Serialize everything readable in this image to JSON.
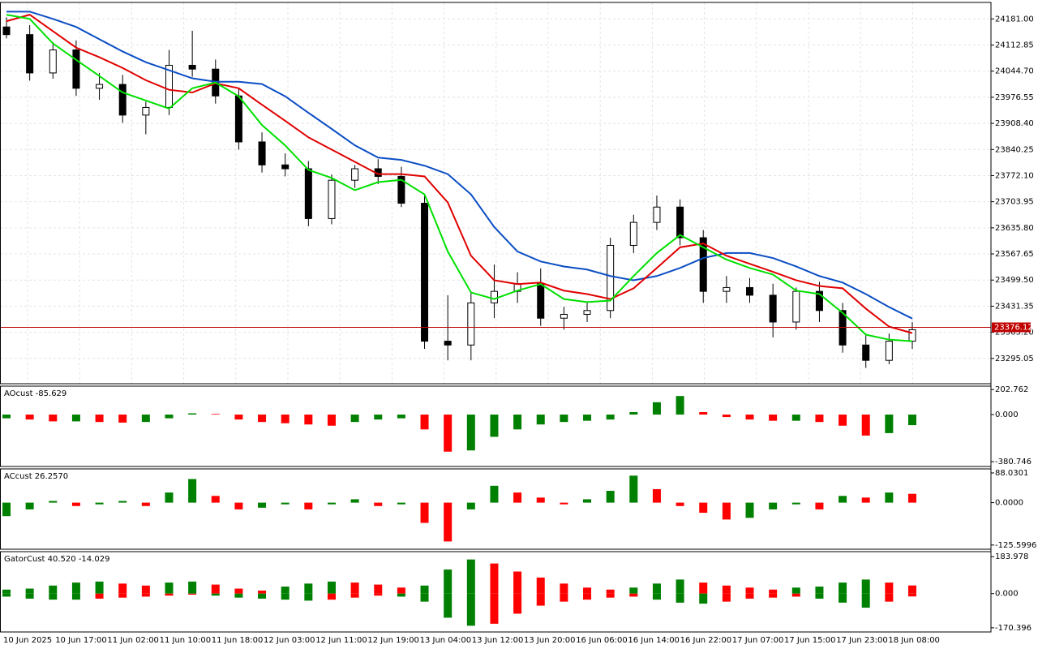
{
  "chart_data": [
    {
      "type": "candlestick",
      "grid": true,
      "ylim": [
        23229,
        24224
      ],
      "yticks": [
        {
          "value": 24181,
          "label": "24181.00"
        },
        24112.85,
        {
          "value": 24044.7,
          "label": "24044.70"
        },
        23976.55,
        {
          "value": 23908.4,
          "label": "23908.40"
        },
        23840.25,
        {
          "value": 23772.1,
          "label": "23772.10"
        },
        23703.95,
        {
          "value": 23635.8,
          "label": "23635.80"
        },
        23567.65,
        {
          "value": 23499.5,
          "label": "23499.50"
        },
        23431.35,
        {
          "value": 23363.2,
          "label": "23363.20"
        },
        23295.05
      ],
      "time_labels": [
        "10 Jun 2025",
        "10 Jun 17:00",
        "11 Jun 02:00",
        "11 Jun 10:00",
        "11 Jun 18:00",
        "12 Jun 03:00",
        "12 Jun 11:00",
        "12 Jun 19:00",
        "13 Jun 04:00",
        "13 Jun 12:00",
        "13 Jun 20:00",
        "16 Jun 06:00",
        "16 Jun 14:00",
        "16 Jun 22:00",
        "17 Jun 07:00",
        "17 Jun 15:00",
        "17 Jun 23:00",
        "18 Jun 08:00"
      ],
      "open": [
        24160,
        24140,
        24040,
        24100,
        24000,
        24010,
        23930,
        23950,
        24060,
        24050,
        23980,
        23860,
        23800,
        23790,
        23660,
        23760,
        23790,
        23770,
        23700,
        23340,
        23330,
        23440,
        23470,
        23490,
        23400,
        23410,
        23420,
        23590,
        23650,
        23690,
        23610,
        23470,
        23480,
        23460,
        23390,
        23470,
        23420,
        23330,
        23290,
        23340
      ],
      "high": [
        24185,
        24165,
        24120,
        24125,
        24040,
        24035,
        23965,
        24100,
        24150,
        24075,
        24000,
        23885,
        23830,
        23810,
        23775,
        23800,
        23815,
        23795,
        23720,
        23460,
        23470,
        23540,
        23520,
        23530,
        23430,
        23440,
        23610,
        23670,
        23720,
        23710,
        23630,
        23510,
        23505,
        23490,
        23480,
        23495,
        23440,
        23355,
        23360,
        23390
      ],
      "low": [
        24130,
        24020,
        24025,
        23980,
        23970,
        23910,
        23880,
        23930,
        24030,
        23960,
        23840,
        23780,
        23770,
        23640,
        23645,
        23740,
        23750,
        23690,
        23320,
        23290,
        23290,
        23400,
        23440,
        23380,
        23370,
        23390,
        23400,
        23570,
        23630,
        23590,
        23440,
        23440,
        23440,
        23350,
        23370,
        23390,
        23310,
        23270,
        23280,
        23320
      ],
      "close": [
        24140,
        24040,
        24100,
        24000,
        24010,
        23930,
        23950,
        24060,
        24050,
        23980,
        23860,
        23800,
        23790,
        23660,
        23760,
        23790,
        23770,
        23700,
        23340,
        23330,
        23440,
        23470,
        23490,
        23400,
        23410,
        23420,
        23590,
        23650,
        23690,
        23610,
        23470,
        23480,
        23460,
        23390,
        23470,
        23420,
        23330,
        23290,
        23340,
        23370
      ],
      "lines": [
        {
          "color": "#0b4ec4",
          "values": [
            24200,
            24200,
            24181,
            24160,
            24128,
            24096,
            24068,
            24047,
            24026,
            24017,
            24017,
            24011,
            23979,
            23936,
            23894,
            23851,
            23819,
            23813,
            23798,
            23776,
            23723,
            23638,
            23574,
            23548,
            23535,
            23527,
            23510,
            23499,
            23510,
            23531,
            23557,
            23570,
            23570,
            23557,
            23535,
            23510,
            23493,
            23463,
            23429,
            23399
          ]
        },
        {
          "color": "#e00000",
          "values": [
            24175,
            24192,
            24149,
            24106,
            24081,
            24053,
            24021,
            23996,
            23989,
            24013,
            24000,
            23957,
            23915,
            23872,
            23840,
            23808,
            23776,
            23776,
            23770,
            23702,
            23563,
            23499,
            23489,
            23493,
            23472,
            23463,
            23450,
            23478,
            23531,
            23585,
            23595,
            23563,
            23542,
            23521,
            23499,
            23484,
            23478,
            23425,
            23378,
            23361
          ]
        },
        {
          "color": "#00e000",
          "values": [
            24192,
            24181,
            24117,
            24074,
            24032,
            23989,
            23968,
            23947,
            24000,
            24015,
            23979,
            23904,
            23851,
            23787,
            23766,
            23734,
            23755,
            23761,
            23723,
            23574,
            23467,
            23450,
            23472,
            23489,
            23450,
            23442,
            23446,
            23510,
            23570,
            23617,
            23585,
            23553,
            23531,
            23514,
            23472,
            23463,
            23414,
            23357,
            23344,
            23340
          ]
        }
      ],
      "last_price": 23376.12,
      "last_price_color": "#c00000"
    },
    {
      "type": "histogram",
      "title": "AOcust -85.629",
      "up_color": "#008000",
      "down_color": "#ff0000",
      "ylim": [
        -420,
        230
      ],
      "yticks": [
        202.762,
        {
          "value": 0,
          "label": "0.000"
        },
        -380.746
      ],
      "values": [
        -30,
        -40,
        -55,
        -55,
        -60,
        -65,
        -60,
        -30,
        10,
        5,
        -40,
        -60,
        -70,
        -80,
        -90,
        -60,
        -40,
        -30,
        -120,
        -300,
        -290,
        -180,
        -120,
        -80,
        -60,
        -50,
        -40,
        20,
        100,
        150,
        20,
        -20,
        -40,
        -50,
        -50,
        -60,
        -90,
        -170,
        -150,
        -85.629
      ]
    },
    {
      "type": "histogram",
      "title": "ACcust 26.2570",
      "up_color": "#008000",
      "down_color": "#ff0000",
      "ylim": [
        -138,
        100
      ],
      "yticks": [
        88.0301,
        {
          "value": 0,
          "label": "0.0000"
        },
        -125.5996
      ],
      "values": [
        -40,
        -20,
        5,
        -10,
        -5,
        5,
        -10,
        30,
        70,
        20,
        -20,
        -15,
        -5,
        -20,
        -5,
        10,
        -10,
        -5,
        -60,
        -115,
        -20,
        50,
        30,
        15,
        -5,
        10,
        35,
        80,
        40,
        -10,
        -30,
        -50,
        -45,
        -20,
        -5,
        -20,
        20,
        15,
        30,
        26.257
      ]
    },
    {
      "type": "gator",
      "title": "GatorCust 40.520 -14.029",
      "up_color": "#008000",
      "down_color": "#ff0000",
      "ylim": [
        -191,
        209
      ],
      "yticks": [
        183.978,
        {
          "value": 0,
          "label": "0.000"
        },
        -170.396
      ],
      "upper": [
        20,
        25,
        40,
        55,
        60,
        50,
        40,
        55,
        60,
        45,
        25,
        15,
        35,
        50,
        60,
        55,
        45,
        30,
        40,
        120,
        170,
        150,
        110,
        80,
        50,
        30,
        20,
        30,
        50,
        70,
        55,
        40,
        30,
        20,
        30,
        35,
        55,
        70,
        55,
        40.52
      ],
      "lower": [
        -15,
        -25,
        -30,
        -30,
        -25,
        -20,
        -15,
        -10,
        -5,
        -10,
        -20,
        -25,
        -30,
        -35,
        -30,
        -20,
        -10,
        -15,
        -40,
        -120,
        -160,
        -150,
        -100,
        -60,
        -40,
        -30,
        -20,
        -15,
        -30,
        -45,
        -50,
        -40,
        -25,
        -20,
        -15,
        -25,
        -45,
        -70,
        -40,
        -14.029
      ]
    }
  ]
}
